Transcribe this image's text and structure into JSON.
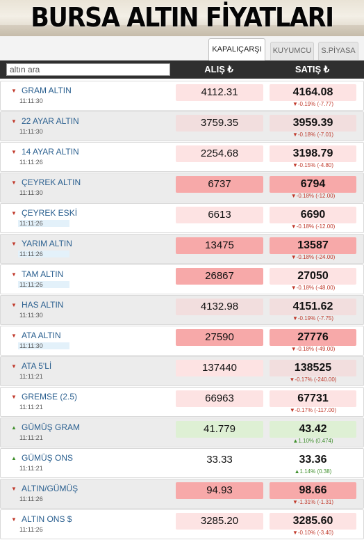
{
  "banner_title": "BURSA ALTIN FİYATLARI",
  "tabs": [
    {
      "label": "KAPALIÇARŞI",
      "active": true
    },
    {
      "label": "KUYUMCU",
      "active": false
    },
    {
      "label": "S.PİYASA",
      "active": false
    }
  ],
  "search": {
    "placeholder": "altın ara"
  },
  "columns": {
    "alis": "ALIŞ ₺",
    "satis": "SATIŞ ₺"
  },
  "colors": {
    "header_bg": "#2f2f2f",
    "name": "#2a5f8f",
    "down": "#c0392b",
    "up": "#3f8f2c",
    "strong_red": "#f7a9a9",
    "light_red": "#fde3e3",
    "light_green": "#def0d4"
  },
  "items": [
    {
      "name": "GRAM ALTIN",
      "time": "11:11:30",
      "alis": "4112.31",
      "satis": "4164.08",
      "change": "▼-0.19% (-7.77)",
      "trend": "down",
      "alis_bg": "#fde3e3",
      "satis_bg": "#fde3e3",
      "time_hl": false
    },
    {
      "name": "22 AYAR ALTIN",
      "time": "11:11:30",
      "alis": "3759.35",
      "satis": "3959.39",
      "change": "▼-0.18% (-7.01)",
      "trend": "down",
      "alis_bg": "#f2dede",
      "satis_bg": "#f2dede",
      "time_hl": false
    },
    {
      "name": "14 AYAR ALTIN",
      "time": "11:11:26",
      "alis": "2254.68",
      "satis": "3198.79",
      "change": "▼-0.15% (-4.80)",
      "trend": "down",
      "alis_bg": "#fde3e3",
      "satis_bg": "#fde3e3",
      "time_hl": false
    },
    {
      "name": "ÇEYREK ALTIN",
      "time": "11:11:30",
      "alis": "6737",
      "satis": "6794",
      "change": "▼-0.18% (-12.00)",
      "trend": "down",
      "alis_bg": "#f7a9a9",
      "satis_bg": "#f7a9a9",
      "time_hl": false
    },
    {
      "name": "ÇEYREK ESKİ",
      "time": "11:11:26",
      "alis": "6613",
      "satis": "6690",
      "change": "▼-0.18% (-12.00)",
      "trend": "down",
      "alis_bg": "#fde3e3",
      "satis_bg": "#fde3e3",
      "time_hl": true
    },
    {
      "name": "YARIM ALTIN",
      "time": "11:11:26",
      "alis": "13475",
      "satis": "13587",
      "change": "▼-0.18% (-24.00)",
      "trend": "down",
      "alis_bg": "#f7a9a9",
      "satis_bg": "#f7a9a9",
      "time_hl": true
    },
    {
      "name": "TAM ALTIN",
      "time": "11:11:26",
      "alis": "26867",
      "satis": "27050",
      "change": "▼-0.18% (-48.00)",
      "trend": "down",
      "alis_bg": "#f7a9a9",
      "satis_bg": "#fde3e3",
      "time_hl": true
    },
    {
      "name": "HAS ALTIN",
      "time": "11:11:30",
      "alis": "4132.98",
      "satis": "4151.62",
      "change": "▼-0.19% (-7.75)",
      "trend": "down",
      "alis_bg": "#f2dede",
      "satis_bg": "#f2dede",
      "time_hl": false
    },
    {
      "name": "ATA ALTIN",
      "time": "11:11:30",
      "alis": "27590",
      "satis": "27776",
      "change": "▼-0.18% (-49.00)",
      "trend": "down",
      "alis_bg": "#f7a9a9",
      "satis_bg": "#f7a9a9",
      "time_hl": true
    },
    {
      "name": "ATA 5'Lİ",
      "time": "11:11:21",
      "alis": "137440",
      "satis": "138525",
      "change": "▼-0.17% (-240.00)",
      "trend": "down",
      "alis_bg": "#fde3e3",
      "satis_bg": "#f2dede",
      "time_hl": false
    },
    {
      "name": "GREMSE (2.5)",
      "time": "11:11:21",
      "alis": "66963",
      "satis": "67731",
      "change": "▼-0.17% (-117.00)",
      "trend": "down",
      "alis_bg": "#fde3e3",
      "satis_bg": "#fde3e3",
      "time_hl": false
    },
    {
      "name": "GÜMÜŞ GRAM",
      "time": "11:11:21",
      "alis": "41.779",
      "satis": "43.42",
      "change": "▲1.10% (0.474)",
      "trend": "up",
      "alis_bg": "#def0d4",
      "satis_bg": "#def0d4",
      "time_hl": false
    },
    {
      "name": "GÜMÜŞ ONS",
      "time": "11:11:21",
      "alis": "33.33",
      "satis": "33.36",
      "change": "▲1.14% (0.38)",
      "trend": "up",
      "alis_bg": "#ffffff",
      "satis_bg": "#ffffff",
      "time_hl": false
    },
    {
      "name": "ALTIN/GÜMÜŞ",
      "time": "11:11:26",
      "alis": "94.93",
      "satis": "98.66",
      "change": "▼-1.31% (-1.31)",
      "trend": "down",
      "alis_bg": "#f7a9a9",
      "satis_bg": "#f7a9a9",
      "time_hl": false
    },
    {
      "name": "ALTIN ONS $",
      "time": "11:11:26",
      "alis": "3285.20",
      "satis": "3285.60",
      "change": "▼-0.10% (-3.40)",
      "trend": "down",
      "alis_bg": "#fde3e3",
      "satis_bg": "#fde3e3",
      "time_hl": false
    }
  ]
}
